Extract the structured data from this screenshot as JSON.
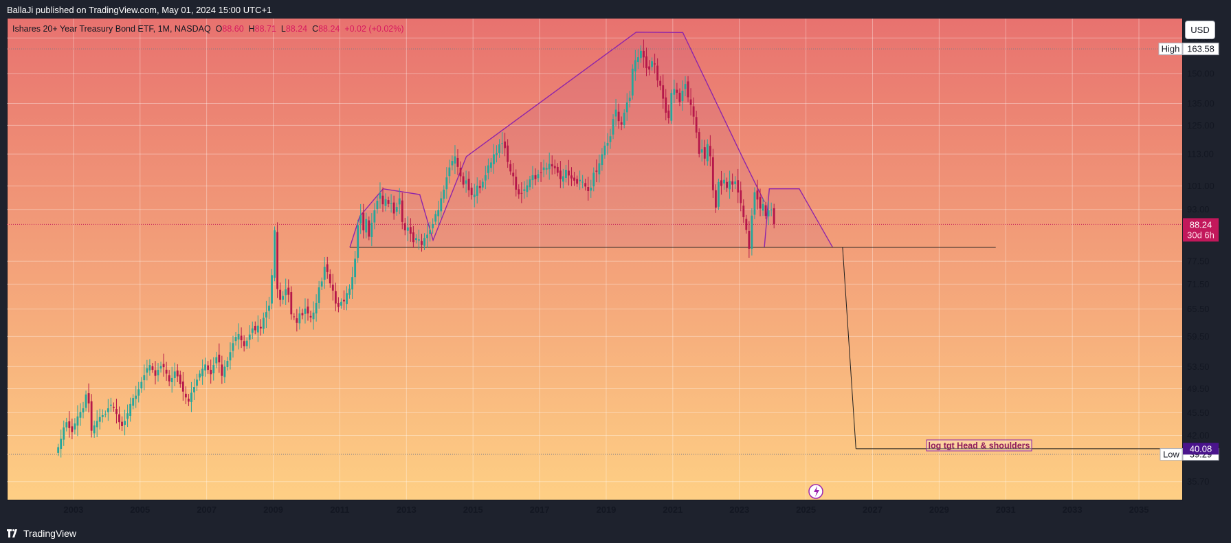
{
  "publisher_line": "BallaJi published on TradingView.com, May 01, 2024 15:00 UTC+1",
  "legend": {
    "symbol": "Ishares 20+ Year Treasury Bond ETF, 1M, NASDAQ",
    "o_label": "O",
    "o_value": "88.60",
    "h_label": "H",
    "h_value": "88.71",
    "l_label": "L",
    "l_value": "88.24",
    "c_label": "C",
    "c_value": "88.24",
    "change": "+0.02 (+0.02%)"
  },
  "currency_button": "USD",
  "brand": "TradingView",
  "colors": {
    "bg_top": "#e8726f",
    "bg_bottom": "#fecf84",
    "up_candle": "#26a69a",
    "down_candle": "#b5174a",
    "pattern_line": "#8e24aa",
    "last_price_badge": "#c2185b",
    "target_badge": "#4a148c"
  },
  "chart_data": {
    "type": "candlestick",
    "y_scale": "log",
    "x_range": [
      2001.0,
      2036.3
    ],
    "y_range": [
      33.5,
      182
    ],
    "x_ticks": [
      "2003",
      "2005",
      "2007",
      "2009",
      "2011",
      "2013",
      "2015",
      "2017",
      "2019",
      "2021",
      "2023",
      "2025",
      "2027",
      "2029",
      "2031",
      "2033",
      "2035"
    ],
    "y_ticks": [
      "170.00",
      "150.00",
      "135.00",
      "125.00",
      "113.00",
      "101.00",
      "93.00",
      "77.50",
      "71.50",
      "65.50",
      "59.50",
      "53.50",
      "49.50",
      "45.50",
      "42.00",
      "35.70"
    ],
    "monthly_closes": {
      "start": "2002-07",
      "values": [
        40.3,
        41.5,
        43.2,
        44.0,
        43.1,
        42.5,
        43.8,
        44.9,
        45.6,
        46.2,
        48.5,
        47.0,
        42.7,
        43.5,
        44.2,
        44.8,
        45.1,
        45.3,
        46.2,
        46.8,
        46.3,
        45.3,
        44.0,
        43.4,
        44.2,
        45.4,
        46.9,
        47.9,
        48.3,
        49.4,
        50.7,
        51.9,
        53.2,
        53.8,
        52.9,
        51.8,
        52.9,
        53.6,
        53.4,
        52.2,
        50.8,
        51.4,
        52.6,
        51.7,
        50.3,
        49.0,
        48.0,
        47.3,
        48.8,
        49.8,
        51.1,
        52.2,
        53.1,
        53.9,
        52.9,
        52.1,
        53.8,
        55.3,
        54.3,
        51.8,
        53.5,
        54.6,
        56.3,
        58.1,
        59.4,
        60.0,
        58.7,
        57.5,
        58.6,
        59.9,
        61.2,
        60.8,
        61.8,
        61.2,
        63.5,
        64.8,
        66.3,
        73.8,
        86.4,
        70.3,
        67.7,
        68.6,
        70.2,
        68.9,
        64.3,
        63.7,
        62.4,
        64.5,
        64.1,
        65.6,
        64.5,
        63.6,
        64.7,
        66.9,
        70.7,
        72.2,
        76.0,
        74.6,
        71.7,
        69.9,
        66.8,
        66.0,
        67.2,
        67.3,
        69.3,
        70.4,
        73.3,
        78.2,
        88.0,
        91.1,
        86.4,
        89.9,
        84.5,
        88.7,
        92.7,
        95.9,
        98.5,
        94.7,
        96.4,
        94.8,
        95.0,
        91.7,
        93.8,
        96.7,
        89.0,
        86.4,
        87.3,
        85.4,
        82.9,
        84.1,
        83.7,
        82.1,
        84.1,
        85.1,
        86.5,
        88.3,
        91.5,
        92.8,
        96.7,
        99.7,
        104.1,
        107.8,
        110.3,
        112.1,
        108.0,
        104.5,
        101.5,
        103.0,
        99.5,
        97.8,
        98.0,
        101.1,
        100.3,
        102.5,
        104.9,
        108.6,
        109.7,
        112.9,
        113.4,
        116.9,
        117.4,
        115.4,
        109.9,
        106.3,
        104.5,
        99.7,
        98.1,
        98.5,
        99.8,
        101.2,
        103.4,
        104.9,
        103.5,
        105.3,
        105.9,
        107.8,
        107.6,
        109.2,
        108.2,
        107.5,
        105.8,
        103.5,
        104.5,
        106.9,
        104.8,
        103.7,
        102.9,
        101.8,
        103.2,
        102.5,
        100.8,
        99.2,
        100.4,
        105.8,
        106.2,
        109.4,
        112.9,
        116.4,
        117.5,
        120.3,
        127.8,
        132.1,
        126.9,
        125.3,
        130.7,
        135.5,
        137.8,
        152.6,
        157.2,
        158.9,
        162.5,
        158.8,
        152.9,
        152.1,
        156.6,
        154.9,
        146.4,
        143.7,
        137.3,
        130.7,
        128.2,
        140.1,
        142.1,
        140.2,
        135.7,
        141.2,
        144.6,
        138.0,
        134.3,
        128.9,
        121.9,
        113.1,
        114.9,
        111.2,
        117.0,
        112.1,
        99.5,
        93.6,
        102.4,
        101.0,
        103.2,
        100.3,
        102.8,
        101.5,
        102.6,
        98.7,
        95.1,
        90.5,
        86.5,
        81.0,
        91.0,
        98.8,
        96.3,
        93.3,
        94.8,
        90.9,
        92.7,
        93.0,
        88.24
      ]
    },
    "high": "163.58",
    "low": "39.29",
    "last_price": "88.24",
    "countdown": "30d 6h",
    "high_label": "High",
    "low_label": "Low",
    "neckline": 81.4,
    "target_price": "40.08",
    "annotation": "log tgt Head & shoulders",
    "pattern": {
      "fill": [
        [
          2011.3,
          81.4
        ],
        [
          2011.6,
          90.8
        ],
        [
          2012.3,
          100.0
        ],
        [
          2013.4,
          98.0
        ],
        [
          2013.8,
          83.5
        ],
        [
          2014.8,
          112.0
        ],
        [
          2019.9,
          173.5
        ],
        [
          2021.3,
          173.3
        ],
        [
          2023.1,
          111.5
        ],
        [
          2023.75,
          95.5
        ],
        [
          2023.9,
          100.0
        ],
        [
          2024.8,
          100.0
        ],
        [
          2025.8,
          81.4
        ]
      ],
      "head": [
        [
          2011.3,
          81.4
        ],
        [
          2011.6,
          90.8
        ],
        [
          2012.3,
          100.0
        ],
        [
          2013.4,
          98.0
        ],
        [
          2013.8,
          83.5
        ],
        [
          2014.8,
          112.0
        ],
        [
          2019.9,
          173.5
        ],
        [
          2021.3,
          173.3
        ],
        [
          2023.1,
          111.5
        ],
        [
          2023.75,
          95.5
        ]
      ],
      "right_shoulder": [
        [
          2023.75,
          81.4
        ],
        [
          2023.9,
          100.0
        ],
        [
          2024.8,
          100.0
        ],
        [
          2025.8,
          81.4
        ]
      ],
      "neckline_span": [
        2011.3,
        2030.7
      ],
      "projection": [
        [
          2026.1,
          81.4
        ],
        [
          2026.5,
          40.08
        ]
      ],
      "target_span": [
        2026.5,
        2036.3
      ]
    }
  }
}
